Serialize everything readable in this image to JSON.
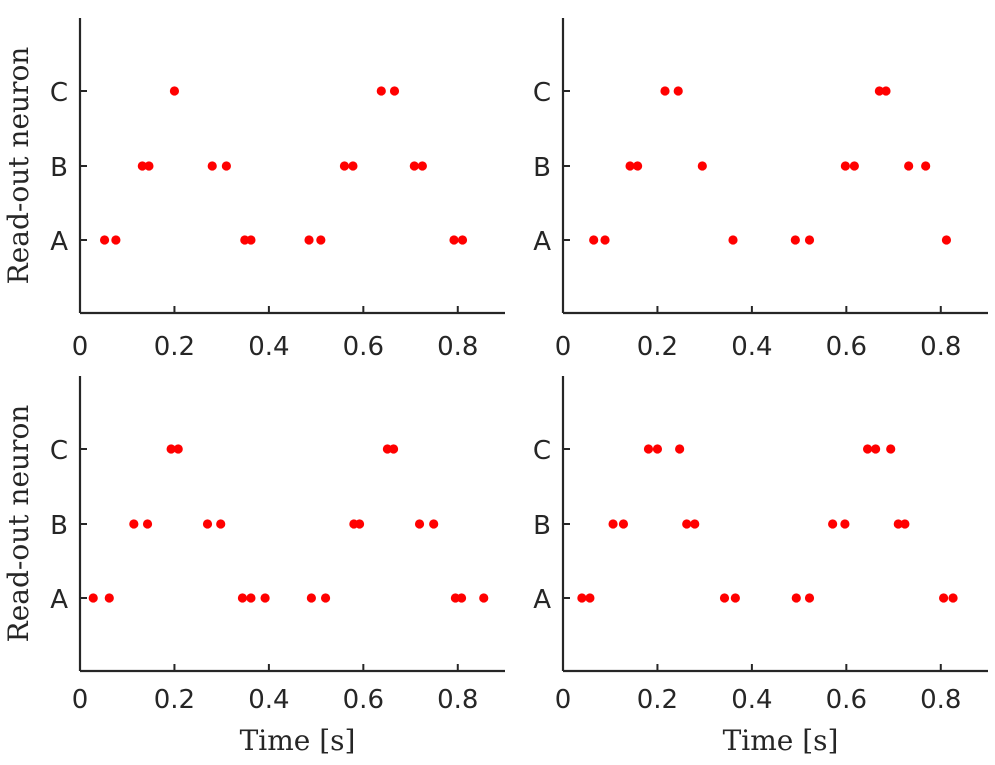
{
  "chart_data": [
    {
      "type": "scatter",
      "xlabel": "",
      "ylabel": "Read-out neuron",
      "xlim": [
        0,
        0.9
      ],
      "xticks": [
        "0",
        "0.2",
        "0.4",
        "0.6",
        "0.8"
      ],
      "categories": [
        "A",
        "B",
        "C"
      ],
      "grid": false,
      "series": [
        {
          "category": "A",
          "x": [
            0.052,
            0.076,
            0.349,
            0.362,
            0.485,
            0.51,
            0.792,
            0.81
          ]
        },
        {
          "category": "B",
          "x": [
            0.132,
            0.146,
            0.28,
            0.31,
            0.56,
            0.578,
            0.708,
            0.725
          ]
        },
        {
          "category": "C",
          "x": [
            0.2,
            0.638,
            0.666
          ]
        }
      ]
    },
    {
      "type": "scatter",
      "xlabel": "",
      "ylabel": "",
      "xlim": [
        0,
        0.9
      ],
      "xticks": [
        "0",
        "0.2",
        "0.4",
        "0.6",
        "0.8"
      ],
      "categories": [
        "A",
        "B",
        "C"
      ],
      "grid": false,
      "series": [
        {
          "category": "A",
          "x": [
            0.065,
            0.089,
            0.36,
            0.492,
            0.522,
            0.812
          ]
        },
        {
          "category": "B",
          "x": [
            0.142,
            0.158,
            0.295,
            0.598,
            0.617,
            0.732,
            0.768
          ]
        },
        {
          "category": "C",
          "x": [
            0.216,
            0.244,
            0.67,
            0.684
          ]
        }
      ]
    },
    {
      "type": "scatter",
      "xlabel": "Time [s]",
      "ylabel": "Read-out neuron",
      "xlim": [
        0,
        0.9
      ],
      "xticks": [
        "0",
        "0.2",
        "0.4",
        "0.6",
        "0.8"
      ],
      "categories": [
        "A",
        "B",
        "C"
      ],
      "grid": false,
      "series": [
        {
          "category": "A",
          "x": [
            0.028,
            0.062,
            0.344,
            0.362,
            0.392,
            0.49,
            0.52,
            0.795,
            0.808,
            0.855
          ]
        },
        {
          "category": "B",
          "x": [
            0.114,
            0.143,
            0.27,
            0.298,
            0.58,
            0.592,
            0.719,
            0.749
          ]
        },
        {
          "category": "C",
          "x": [
            0.193,
            0.208,
            0.651,
            0.664
          ]
        }
      ]
    },
    {
      "type": "scatter",
      "xlabel": "Time [s]",
      "ylabel": "",
      "xlim": [
        0,
        0.9
      ],
      "xticks": [
        "0",
        "0.2",
        "0.4",
        "0.6",
        "0.8"
      ],
      "categories": [
        "A",
        "B",
        "C"
      ],
      "grid": false,
      "series": [
        {
          "category": "A",
          "x": [
            0.04,
            0.057,
            0.342,
            0.365,
            0.494,
            0.522,
            0.806,
            0.826
          ]
        },
        {
          "category": "B",
          "x": [
            0.106,
            0.128,
            0.262,
            0.279,
            0.571,
            0.597,
            0.71,
            0.724
          ]
        },
        {
          "category": "C",
          "x": [
            0.181,
            0.2,
            0.247,
            0.645,
            0.662,
            0.694
          ]
        }
      ]
    }
  ],
  "colors": {
    "spike": "#ff0000",
    "axis": "#262626"
  }
}
